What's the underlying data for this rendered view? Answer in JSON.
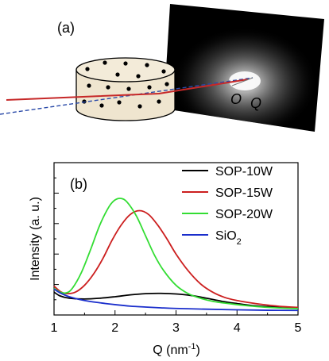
{
  "panel_a": {
    "label": "(a)",
    "origin_label": "O",
    "q_label": "Q"
  },
  "panel_b": {
    "label": "(b)"
  },
  "chart_data": {
    "type": "line",
    "xlabel_main": "Q (nm",
    "xlabel_sup": "-1",
    "xlabel_end": ")",
    "ylabel": "Intensity (a. u.)",
    "xlim": [
      1,
      5
    ],
    "ylim": [
      0,
      10
    ],
    "xticks": [
      "1",
      "2",
      "3",
      "4",
      "5"
    ],
    "legend_position": "top-right",
    "series": [
      {
        "name": "SOP-10W",
        "color": "#000000",
        "x": [
          1.0,
          1.1,
          1.25,
          1.5,
          1.75,
          2.0,
          2.25,
          2.5,
          2.75,
          3.0,
          3.25,
          3.5,
          3.75,
          4.0,
          4.25,
          4.5,
          4.75,
          5.0
        ],
        "y": [
          1.5,
          1.25,
          1.1,
          1.05,
          1.1,
          1.2,
          1.32,
          1.4,
          1.42,
          1.38,
          1.28,
          1.1,
          0.9,
          0.75,
          0.62,
          0.55,
          0.5,
          0.48
        ]
      },
      {
        "name": "SOP-15W",
        "label_main": "SOP-15W",
        "color": "#cc1f1f",
        "x": [
          1.0,
          1.1,
          1.2,
          1.35,
          1.5,
          1.65,
          1.8,
          1.95,
          2.1,
          2.25,
          2.4,
          2.55,
          2.7,
          2.85,
          3.0,
          3.2,
          3.4,
          3.6,
          3.8,
          4.0,
          4.25,
          4.5,
          4.75,
          5.0
        ],
        "y": [
          1.9,
          1.55,
          1.4,
          1.5,
          1.95,
          2.7,
          3.7,
          4.9,
          5.9,
          6.6,
          6.85,
          6.6,
          5.9,
          5.0,
          4.0,
          2.9,
          2.05,
          1.5,
          1.15,
          0.95,
          0.78,
          0.65,
          0.55,
          0.5
        ]
      },
      {
        "name": "SOP-20W",
        "color": "#33dd33",
        "x": [
          1.0,
          1.1,
          1.2,
          1.3,
          1.45,
          1.6,
          1.75,
          1.9,
          2.0,
          2.1,
          2.2,
          2.35,
          2.5,
          2.65,
          2.8,
          3.0,
          3.2,
          3.4,
          3.6,
          3.8,
          4.0,
          4.25,
          4.5,
          4.75,
          5.0
        ],
        "y": [
          1.75,
          1.5,
          1.45,
          1.75,
          2.8,
          4.3,
          5.9,
          7.1,
          7.55,
          7.65,
          7.4,
          6.5,
          5.2,
          3.9,
          2.9,
          1.95,
          1.4,
          1.1,
          0.9,
          0.78,
          0.68,
          0.58,
          0.5,
          0.45,
          0.42
        ]
      },
      {
        "name": "SiO2",
        "label_main": "SiO",
        "label_sub": "2",
        "color": "#1a2ecc",
        "x": [
          1.0,
          1.1,
          1.25,
          1.5,
          1.75,
          2.0,
          2.25,
          2.5,
          2.75,
          3.0,
          3.5,
          4.0,
          4.5,
          5.0
        ],
        "y": [
          1.7,
          1.45,
          1.2,
          0.95,
          0.8,
          0.68,
          0.58,
          0.52,
          0.47,
          0.43,
          0.38,
          0.34,
          0.31,
          0.3
        ]
      }
    ]
  }
}
